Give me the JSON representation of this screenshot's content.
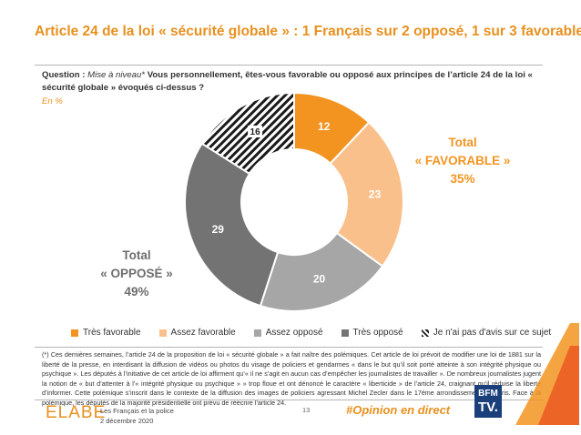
{
  "title": "Article 24 de la loi « sécurité globale » : 1 Français sur 2 opposé, 1 sur 3 favorable",
  "question": {
    "label": "Question :",
    "italic": "Mise à niveau*",
    "text": "Vous personnellement, êtes-vous favorable ou opposé aux principes de l’article 24 de la loi « sécurité globale » évoqués ci-dessus ?"
  },
  "unit": "En %",
  "chart_data": {
    "type": "pie",
    "variant": "donut",
    "categories": [
      "Très favorable",
      "Assez favorable",
      "Assez opposé",
      "Très opposé",
      "Je n'ai pas d'avis sur ce sujet"
    ],
    "values": [
      12,
      23,
      20,
      29,
      16
    ],
    "colors": [
      "#F39421",
      "#F9C08B",
      "#A6A6A6",
      "#737373",
      "hatch"
    ],
    "legend_position": "bottom"
  },
  "totals": {
    "favorable": {
      "line1": "Total",
      "line2": "« FAVORABLE »",
      "value": "35%"
    },
    "oppose": {
      "line1": "Total",
      "line2": "« OPPOSÉ »",
      "value": "49%"
    }
  },
  "note": "(*) Ces dernières semaines, l’article 24 de la proposition de loi « sécurité globale » a fait naître des polémiques. Cet article de loi prévoit de modifier une loi de 1881 sur la liberté de la presse, en interdisant la diffusion de vidéos ou photos du visage de policiers et gendarmes « dans le but qu’il soit porté atteinte à son intégrité physique ou psychique ». Les députés à l’initiative de cet article de loi affirment qu’« il ne s’agit en aucun cas d’empêcher les journalistes de travailler ». De nombreux journalistes jugent la notion de « but d’attenter à l’« intégrité physique ou psychique » » trop floue et ont dénoncé le caractère « liberticide » de l’article 24, craignant qu’il réduise la liberté d’informer. Cette polémique s’inscrit dans le contexte de la diffusion des images de policiers agressant Michel Zecler dans le 17ème arrondissement de Paris. Face à la polémique, les députés de la majorité présidentielle ont prévu de réécrire l’article 24.",
  "footer": {
    "logo": "ELABE",
    "study": "Les Français et la police",
    "date": "2 décembre 2020",
    "page": "13",
    "hashtag": "#Opinion en direct",
    "bfm_line1": "BFM",
    "bfm_line2": "TV."
  }
}
